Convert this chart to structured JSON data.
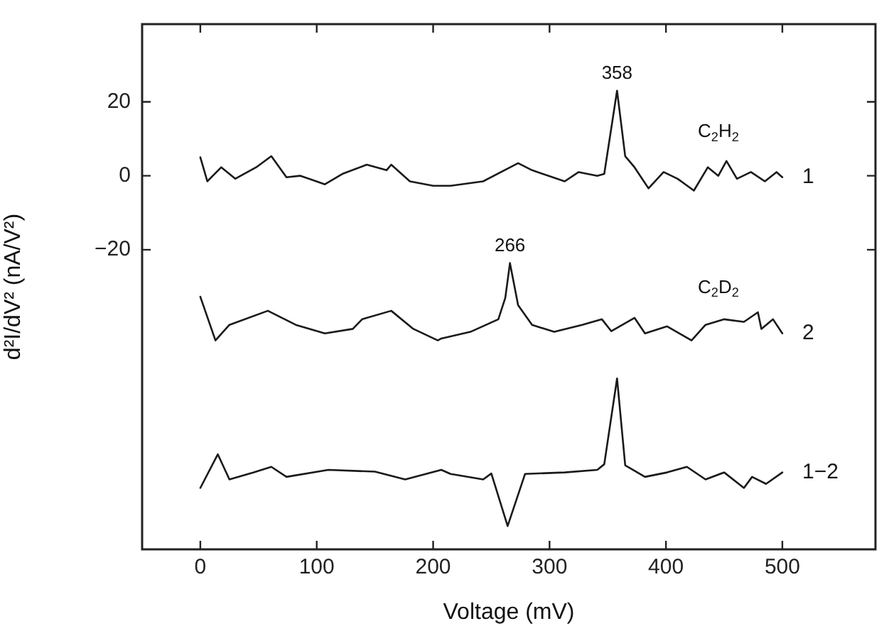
{
  "chart_data": {
    "type": "line",
    "xlabel": "Voltage (mV)",
    "ylabel": "d²I/dV² (nA/V²)",
    "xlim": [
      -50,
      580
    ],
    "ylim": [
      -101,
      41
    ],
    "xticks": [
      0,
      100,
      200,
      300,
      400,
      500
    ],
    "yticks": [
      -20,
      0,
      20
    ],
    "tick_labels": "xy",
    "grid": false,
    "legend": false,
    "marker": "none",
    "line_style": "solid",
    "series": [
      {
        "name": "1",
        "color": "#1a1a1a",
        "x": [
          0,
          6,
          18,
          30,
          48,
          61,
          74,
          86,
          107,
          122,
          143,
          160,
          164,
          180,
          200,
          215,
          243,
          273,
          285,
          313,
          325,
          341,
          347,
          358,
          365,
          373,
          385,
          398,
          410,
          424,
          436,
          445,
          452,
          461,
          473,
          485,
          495,
          500
        ],
        "values": [
          5,
          -1.5,
          2.3,
          -0.8,
          2.3,
          5.3,
          -0.4,
          0,
          -2.3,
          0.5,
          3,
          1.5,
          3,
          -1.5,
          -2.7,
          -2.7,
          -1.5,
          3.4,
          1.5,
          -1.5,
          1,
          0,
          0.5,
          23,
          5.3,
          2.3,
          -3.4,
          1,
          -0.8,
          -4,
          2.3,
          0,
          4,
          -0.8,
          1,
          -1.5,
          1,
          -0.4
        ]
      },
      {
        "name": "2",
        "color": "#1a1a1a",
        "x": [
          0,
          13,
          25,
          58,
          82,
          107,
          131,
          139,
          164,
          183,
          204,
          207,
          232,
          256,
          262,
          266,
          273,
          285,
          304,
          328,
          345,
          353,
          373,
          382,
          401,
          422,
          434,
          450,
          467,
          479,
          482,
          492,
          500
        ],
        "values": [
          -32.7,
          -44.5,
          -40.3,
          -36.5,
          -40.3,
          -42.6,
          -41.4,
          -38.8,
          -36.5,
          -41.4,
          -44.5,
          -44,
          -42.2,
          -38.8,
          -33,
          -23.6,
          -35,
          -40.3,
          -42.2,
          -40.3,
          -38.8,
          -42,
          -38.4,
          -42.6,
          -40.7,
          -44.5,
          -40.3,
          -38.8,
          -39.5,
          -36.9,
          -41.4,
          -38.8,
          -42.6
        ]
      },
      {
        "name": "1−2",
        "color": "#1a1a1a",
        "x": [
          0,
          15,
          25,
          46,
          61,
          74,
          110,
          150,
          176,
          207,
          215,
          243,
          250,
          264,
          279,
          313,
          341,
          347,
          358,
          365,
          382,
          401,
          418,
          434,
          450,
          467,
          474,
          486,
          500
        ],
        "values": [
          -84.4,
          -75.3,
          -82.1,
          -80.2,
          -78.7,
          -81.4,
          -79.5,
          -80,
          -82.1,
          -79.5,
          -80.6,
          -82.1,
          -80.5,
          -94.7,
          -80.6,
          -80.2,
          -79.5,
          -78,
          -54.8,
          -78.3,
          -81.4,
          -80.2,
          -78.7,
          -82.1,
          -80.2,
          -84.4,
          -81.4,
          -83.3,
          -80.2
        ]
      }
    ],
    "annotations": [
      {
        "text": "358",
        "x": 358,
        "y": 23
      },
      {
        "text": "266",
        "x": 266,
        "y": -23.6
      },
      "C$_{2}$H$_{2}$",
      "C$_{2}$D$_{2}$"
    ]
  }
}
